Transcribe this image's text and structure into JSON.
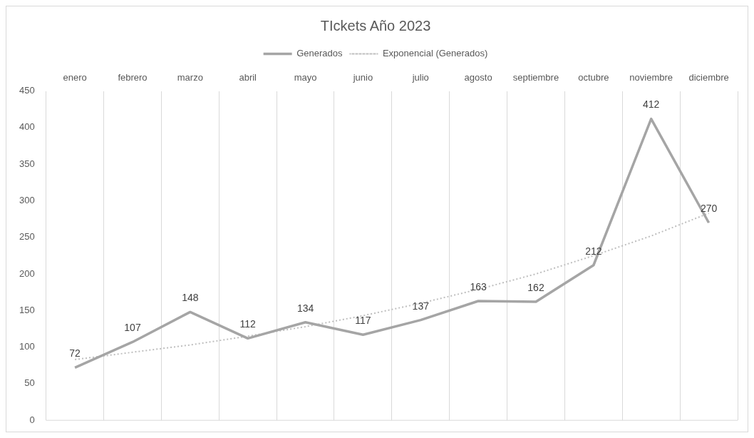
{
  "chart_data": {
    "type": "line",
    "title": "TIckets Año 2023",
    "categories": [
      "enero",
      "febrero",
      "marzo",
      "abril",
      "mayo",
      "junio",
      "julio",
      "agosto",
      "septiembre",
      "octubre",
      "noviembre",
      "diciembre"
    ],
    "series": [
      {
        "name": "Generados",
        "color": "#a5a5a5",
        "values": [
          72,
          107,
          148,
          112,
          134,
          117,
          137,
          163,
          162,
          212,
          412,
          270
        ],
        "value_labels": [
          "72",
          "107",
          "148",
          "112",
          "134",
          "117",
          "137",
          "163",
          "162",
          "212",
          "412",
          "270"
        ]
      },
      {
        "name": "Exponencial (Generados)",
        "color": "#bfbfbf",
        "line_style": "dotted",
        "values": [
          83,
          93,
          103,
          115,
          128,
          143,
          160,
          179,
          200,
          225,
          252,
          283
        ]
      }
    ],
    "ylim": [
      0,
      450
    ],
    "yticks": [
      0,
      50,
      100,
      150,
      200,
      250,
      300,
      350,
      400,
      450
    ],
    "grid": "x",
    "legend": "top",
    "marker": "none"
  }
}
